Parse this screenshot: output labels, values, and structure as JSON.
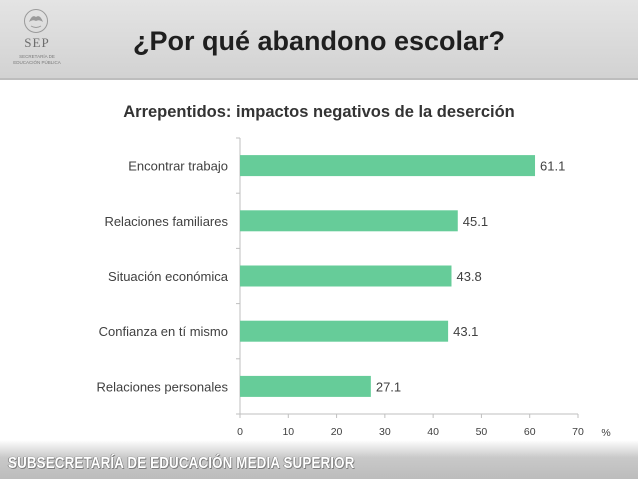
{
  "header": {
    "title": "¿Por qué abandono escolar?",
    "logo": {
      "name": "SEP",
      "subtitle": "SECRETARÍA DE EDUCACIÓN PÚBLICA"
    }
  },
  "footer": {
    "text": "SUBSECRETARÍA DE EDUCACIÓN MEDIA SUPERIOR"
  },
  "colors": {
    "bar": "#66CC99",
    "axis": "#BFBFBF",
    "text": "#404040"
  },
  "chart_data": {
    "type": "bar",
    "orientation": "horizontal",
    "title": "Arrepentidos: impactos negativos de la deserción",
    "categories": [
      "Encontrar trabajo",
      "Relaciones familiares",
      "Situación económica",
      "Confianza en tí mismo",
      "Relaciones personales"
    ],
    "values": [
      61.1,
      45.1,
      43.8,
      43.1,
      27.1
    ],
    "value_labels": [
      "61.1",
      "45.1",
      "43.8",
      "43.1",
      "27.1"
    ],
    "xlabel": "%",
    "ylabel": "",
    "xlim": [
      0,
      70
    ],
    "xticks": [
      "0",
      "10",
      "20",
      "30",
      "40",
      "50",
      "60",
      "70"
    ],
    "grid": false,
    "legend": "none"
  }
}
